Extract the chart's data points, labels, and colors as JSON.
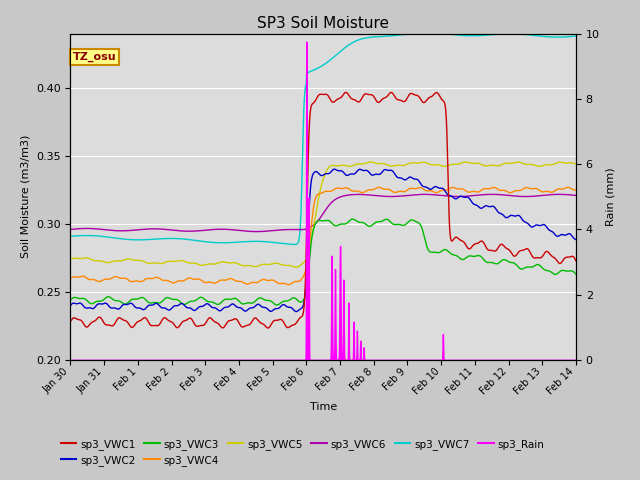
{
  "title": "SP3 Soil Moisture",
  "xlabel": "Time",
  "ylabel_left": "Soil Moisture (m3/m3)",
  "ylabel_right": "Rain (mm)",
  "ylim_left": [
    0.2,
    0.44
  ],
  "ylim_right": [
    0.0,
    10.0
  ],
  "xlim": [
    0,
    15
  ],
  "colors": {
    "VWC1": "#cc0000",
    "VWC2": "#0000cc",
    "VWC3": "#00bb00",
    "VWC4": "#ff8800",
    "VWC5": "#cccc00",
    "VWC6": "#aa00aa",
    "VWC7": "#00cccc",
    "Rain": "#ff00ff"
  },
  "xtick_labels": [
    "Jan 30",
    "Jan 31",
    "Feb 1",
    "Feb 2",
    "Feb 3",
    "Feb 4",
    "Feb 5",
    "Feb 6",
    "Feb 7",
    "Feb 8",
    "Feb 9",
    "Feb 10",
    "Feb 11",
    "Feb 12",
    "Feb 13",
    "Feb 14"
  ],
  "xtick_positions": [
    0,
    1,
    2,
    3,
    4,
    5,
    6,
    7,
    8,
    9,
    10,
    11,
    12,
    13,
    14,
    15
  ],
  "annotation_text": "TZ_osu",
  "annotation_box_color": "#ffff88",
  "annotation_box_edge": "#cc8800",
  "fig_bg": "#c8c8c8",
  "plot_bg": "#dcdcdc"
}
